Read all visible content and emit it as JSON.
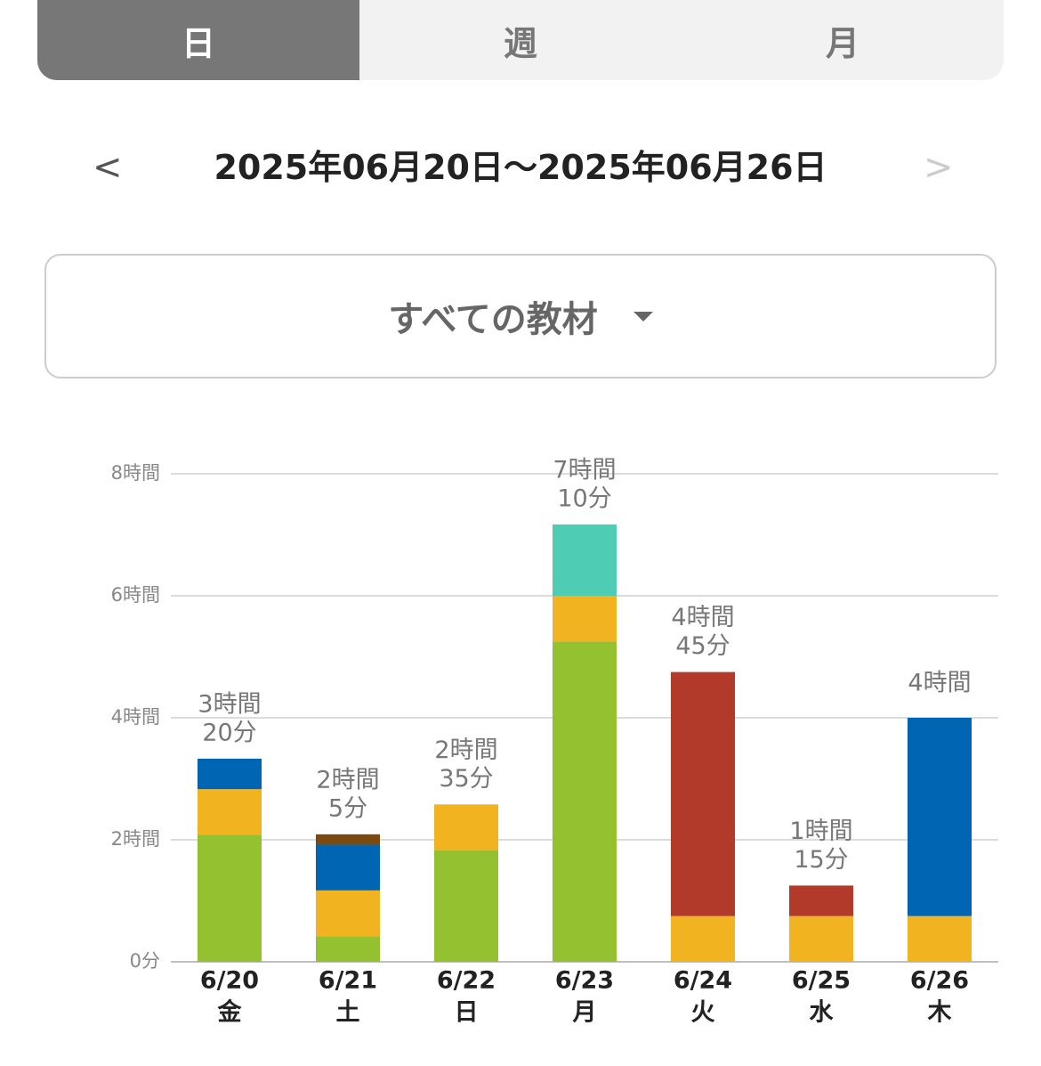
{
  "tabs": [
    "日",
    "週",
    "月"
  ],
  "selected_tab": 0,
  "date_range": "2025年06月20日〜2025年06月26日",
  "filter": "すべての教材",
  "chart_data": {
    "type": "bar",
    "stacked": true,
    "categories": [
      "6/20",
      "6/21",
      "6/22",
      "6/23",
      "6/24",
      "6/25",
      "6/26"
    ],
    "weekdays": [
      "金",
      "土",
      "日",
      "月",
      "火",
      "水",
      "木"
    ],
    "series": [
      {
        "color": "#93c12f",
        "values": [
          2.08,
          0.42,
          1.83,
          5.25,
          null,
          null,
          null
        ]
      },
      {
        "color": "#f2b320",
        "values": [
          0.75,
          0.75,
          0.75,
          0.75,
          0.75,
          0.75,
          0.75
        ]
      },
      {
        "color": "#0066b3",
        "values": [
          0.5,
          0.75,
          null,
          null,
          null,
          null,
          3.25
        ]
      },
      {
        "color": "#7b4a0e",
        "values": [
          null,
          0.17,
          null,
          null,
          null,
          null,
          null
        ]
      },
      {
        "color": "#4ecdb4",
        "values": [
          null,
          null,
          null,
          1.17,
          null,
          null,
          null
        ]
      },
      {
        "color": "#b23a2a",
        "values": [
          null,
          null,
          null,
          null,
          4,
          0.5,
          null
        ]
      }
    ],
    "total_labels": [
      [
        "3時間",
        "20分"
      ],
      [
        "2時間",
        "5分"
      ],
      [
        "2時間",
        "35分"
      ],
      [
        "7時間",
        "10分"
      ],
      [
        "4時間",
        "45分"
      ],
      [
        "1時間",
        "15分"
      ],
      [
        "4時間"
      ]
    ],
    "ylim": [
      0,
      8
    ],
    "yticks": [
      {
        "value": 0,
        "label": "0分"
      },
      {
        "value": 2,
        "label": "2時間"
      },
      {
        "value": 4,
        "label": "4時間"
      },
      {
        "value": 6,
        "label": "6時間"
      },
      {
        "value": 8,
        "label": "8時間"
      }
    ],
    "grid": true
  }
}
